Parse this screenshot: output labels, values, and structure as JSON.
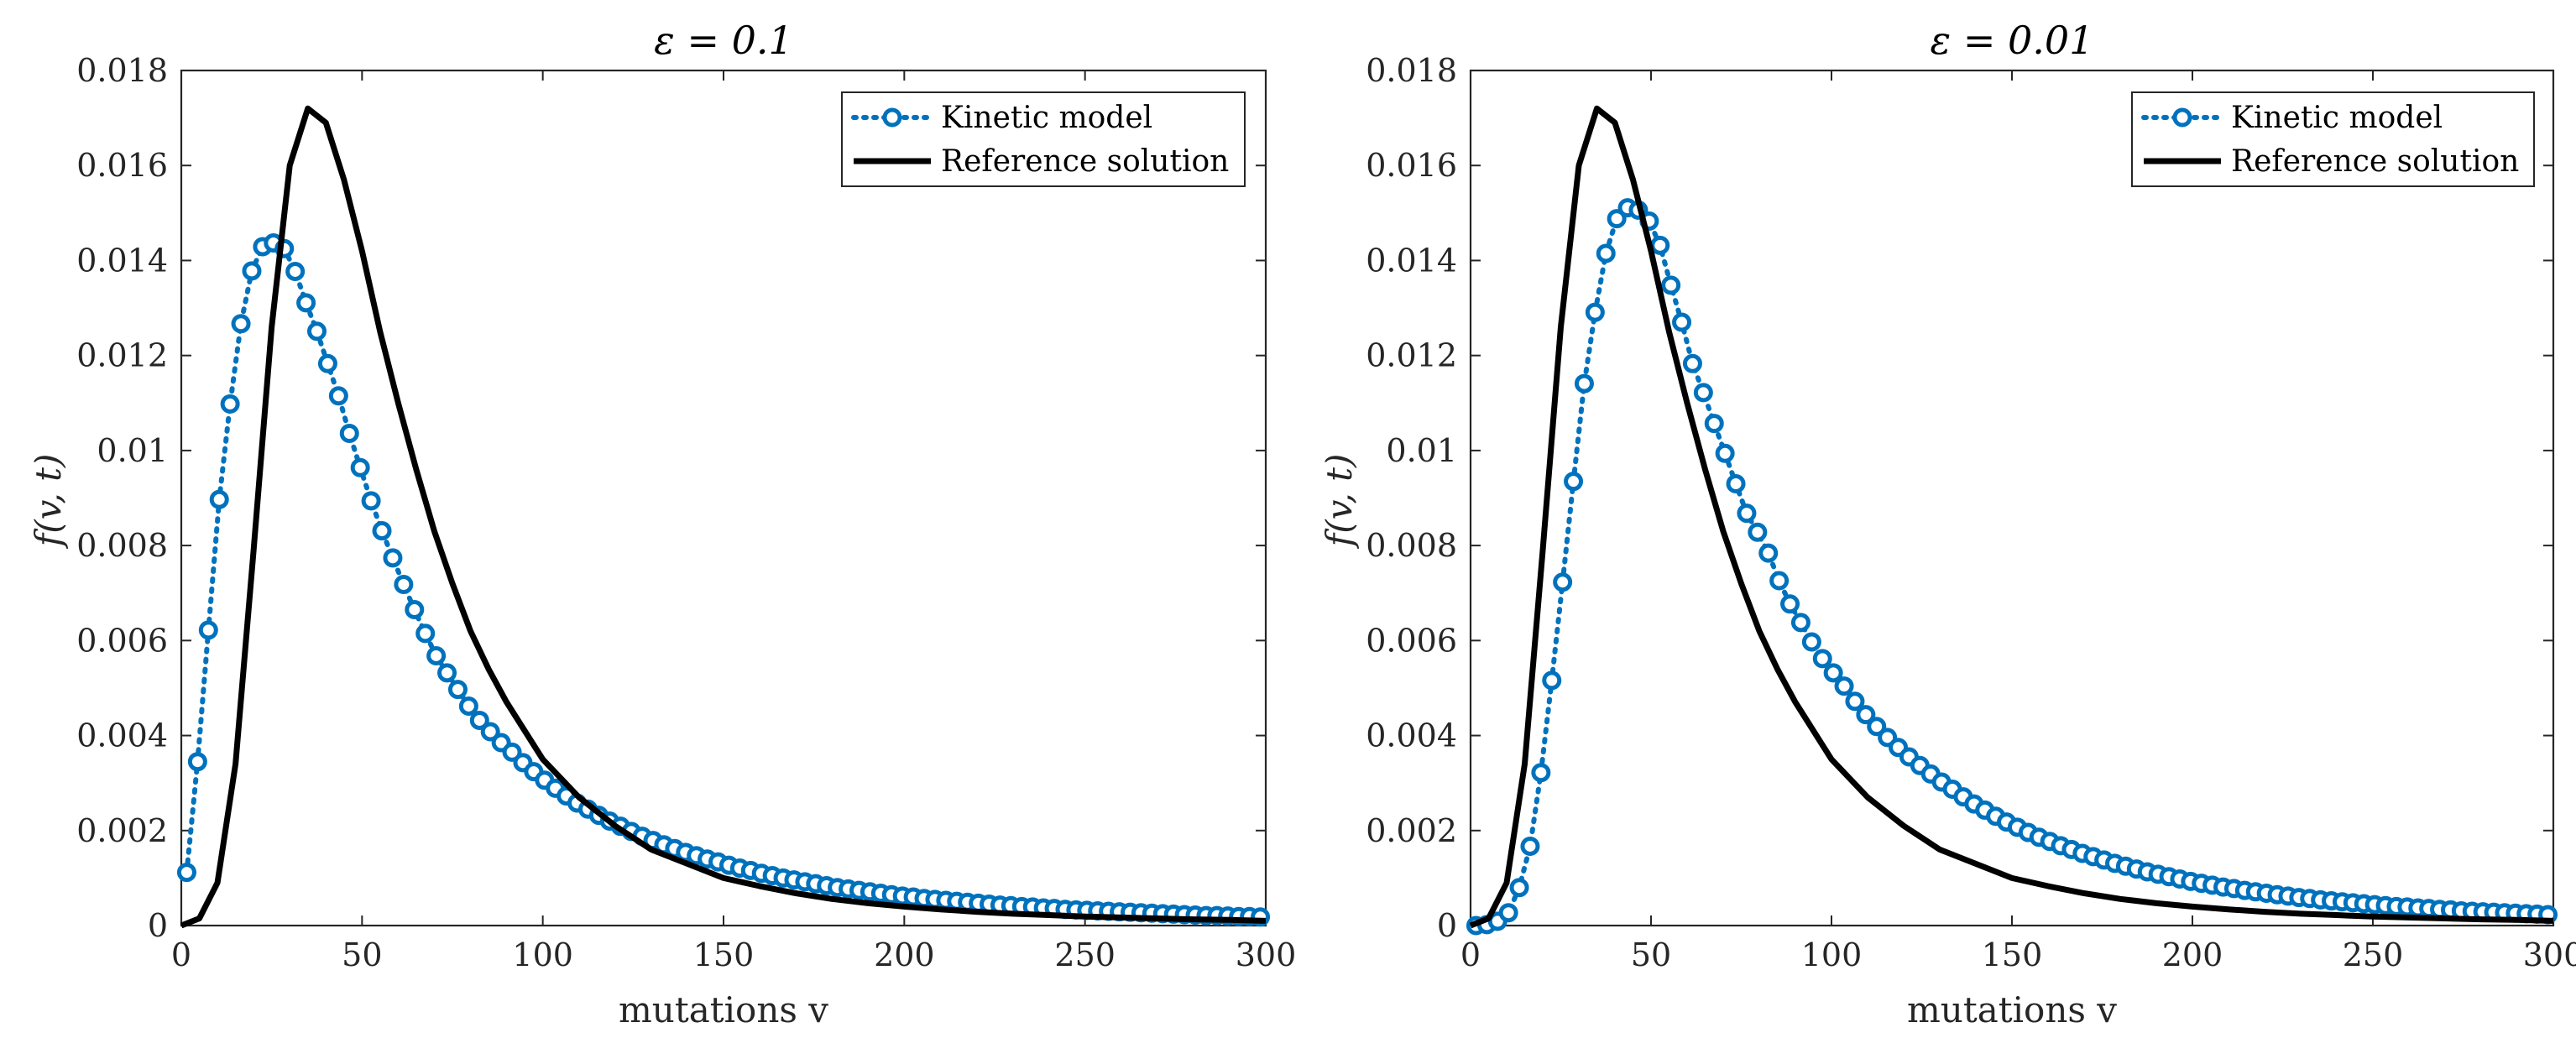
{
  "colors": {
    "kinetic": "#0072BD",
    "reference": "#000000",
    "axis": "#262626",
    "background": "#ffffff"
  },
  "chart_data": [
    {
      "type": "line",
      "title": "ε = 0.1",
      "xlabel": "mutations v",
      "ylabel": "f(v, t)",
      "xlim": [
        0,
        300
      ],
      "ylim": [
        0,
        0.018
      ],
      "xticks": [
        "0",
        "50",
        "100",
        "150",
        "200",
        "250",
        "300"
      ],
      "yticks": [
        "0",
        "0.002",
        "0.004",
        "0.006",
        "0.008",
        "0.01",
        "0.012",
        "0.014",
        "0.016",
        "0.018"
      ],
      "legend": {
        "position": "top-right",
        "entries": [
          "Kinetic model",
          "Reference solution"
        ]
      },
      "series": [
        {
          "name": "Kinetic model",
          "style": "dotted line with circle markers",
          "x": [
            1.5,
            4.5,
            7.5,
            10.5,
            13.5,
            16.5,
            19.5,
            22.5,
            25.5,
            28.5,
            31.5,
            34.5,
            37.5,
            40.5,
            43.5,
            46.5,
            49.5,
            52.5,
            55.5,
            58.5,
            61.5,
            64.5,
            67.5,
            70.5,
            73.5,
            76.5,
            79.5,
            82.5,
            85.5,
            88.5,
            91.5,
            94.5,
            97.5,
            100.5,
            103.5,
            106.5,
            109.5,
            112.5,
            115.5,
            118.5,
            121.5,
            124.5,
            127.5,
            130.5,
            133.5,
            136.5,
            139.5,
            142.5,
            145.5,
            148.5,
            151.5,
            154.5,
            157.5,
            160.5,
            163.5,
            166.5,
            169.5,
            172.5,
            175.5,
            178.5,
            181.5,
            184.5,
            187.5,
            190.5,
            193.5,
            196.5,
            199.5,
            202.5,
            205.5,
            208.5,
            211.5,
            214.5,
            217.5,
            220.5,
            223.5,
            226.5,
            229.5,
            232.5,
            235.5,
            238.5,
            241.5,
            244.5,
            247.5,
            250.5,
            253.5,
            256.5,
            259.5,
            262.5,
            265.5,
            268.5,
            271.5,
            274.5,
            277.5,
            280.5,
            283.5,
            286.5,
            289.5,
            292.5,
            295.5,
            298.5
          ],
          "values": [
            0.00112,
            0.00345,
            0.00622,
            0.00897,
            0.01098,
            0.01267,
            0.01378,
            0.01429,
            0.01437,
            0.01425,
            0.01377,
            0.01311,
            0.01251,
            0.01183,
            0.01115,
            0.01036,
            0.00964,
            0.00894,
            0.00831,
            0.00774,
            0.00718,
            0.00665,
            0.00615,
            0.00568,
            0.00532,
            0.00497,
            0.00462,
            0.00432,
            0.00408,
            0.00385,
            0.00365,
            0.00343,
            0.00324,
            0.00306,
            0.00289,
            0.00273,
            0.00258,
            0.00245,
            0.00232,
            0.0022,
            0.00209,
            0.00198,
            0.00188,
            0.00179,
            0.0017,
            0.00162,
            0.00154,
            0.00147,
            0.0014,
            0.00134,
            0.00127,
            0.00121,
            0.00116,
            0.0011,
            0.00105,
            0.001,
            0.00096,
            0.00092,
            0.00088,
            0.00084,
            0.0008,
            0.00077,
            0.00074,
            0.00071,
            0.00068,
            0.00065,
            0.00062,
            0.0006,
            0.00057,
            0.00055,
            0.00053,
            0.00051,
            0.00049,
            0.00047,
            0.00045,
            0.00043,
            0.00042,
            0.0004,
            0.00039,
            0.00037,
            0.00036,
            0.00034,
            0.00033,
            0.00032,
            0.00031,
            0.0003,
            0.00029,
            0.00028,
            0.00027,
            0.00026,
            0.00025,
            0.00024,
            0.00023,
            0.00022,
            0.00021,
            0.00021,
            0.0002,
            0.00019,
            0.00019,
            0.00018
          ]
        },
        {
          "name": "Reference solution",
          "style": "solid black line",
          "x": [
            0,
            5,
            10,
            15,
            20,
            25,
            30,
            35,
            40,
            45,
            50,
            55,
            60,
            65,
            70,
            75,
            80,
            85,
            90,
            95,
            100,
            110,
            120,
            130,
            140,
            150,
            160,
            170,
            180,
            190,
            200,
            210,
            220,
            230,
            240,
            250,
            260,
            270,
            280,
            290,
            300
          ],
          "values": [
            0.0,
            0.00015,
            0.0009,
            0.0034,
            0.0079,
            0.0126,
            0.016,
            0.0172,
            0.0169,
            0.0157,
            0.0142,
            0.0125,
            0.011,
            0.0096,
            0.0083,
            0.0072,
            0.0062,
            0.0054,
            0.0047,
            0.0041,
            0.0035,
            0.0027,
            0.0021,
            0.0016,
            0.0013,
            0.001,
            0.00083,
            0.00068,
            0.00056,
            0.00047,
            0.0004,
            0.00034,
            0.00029,
            0.00025,
            0.00022,
            0.00019,
            0.00017,
            0.00015,
            0.00013,
            0.00012,
            0.0001
          ]
        }
      ]
    },
    {
      "type": "line",
      "title": "ε = 0.01",
      "xlabel": "mutations v",
      "ylabel": "f(v, t)",
      "xlim": [
        0,
        300
      ],
      "ylim": [
        0,
        0.018
      ],
      "xticks": [
        "0",
        "50",
        "100",
        "150",
        "200",
        "250",
        "300"
      ],
      "yticks": [
        "0",
        "0.002",
        "0.004",
        "0.006",
        "0.008",
        "0.01",
        "0.012",
        "0.014",
        "0.016",
        "0.018"
      ],
      "legend": {
        "position": "top-right",
        "entries": [
          "Kinetic model",
          "Reference solution"
        ]
      },
      "series": [
        {
          "name": "Kinetic model",
          "style": "dotted line with circle markers",
          "x": [
            1.5,
            4.5,
            7.5,
            10.5,
            13.5,
            16.5,
            19.5,
            22.5,
            25.5,
            28.5,
            31.5,
            34.5,
            37.5,
            40.5,
            43.5,
            46.5,
            49.5,
            52.5,
            55.5,
            58.5,
            61.5,
            64.5,
            67.5,
            70.5,
            73.5,
            76.5,
            79.5,
            82.5,
            85.5,
            88.5,
            91.5,
            94.5,
            97.5,
            100.5,
            103.5,
            106.5,
            109.5,
            112.5,
            115.5,
            118.5,
            121.5,
            124.5,
            127.5,
            130.5,
            133.5,
            136.5,
            139.5,
            142.5,
            145.5,
            148.5,
            151.5,
            154.5,
            157.5,
            160.5,
            163.5,
            166.5,
            169.5,
            172.5,
            175.5,
            178.5,
            181.5,
            184.5,
            187.5,
            190.5,
            193.5,
            196.5,
            199.5,
            202.5,
            205.5,
            208.5,
            211.5,
            214.5,
            217.5,
            220.5,
            223.5,
            226.5,
            229.5,
            232.5,
            235.5,
            238.5,
            241.5,
            244.5,
            247.5,
            250.5,
            253.5,
            256.5,
            259.5,
            262.5,
            265.5,
            268.5,
            271.5,
            274.5,
            277.5,
            280.5,
            283.5,
            286.5,
            289.5,
            292.5,
            295.5,
            298.5
          ],
          "values": [
            0.0,
            2e-05,
            9e-05,
            0.00027,
            0.0008,
            0.00167,
            0.00322,
            0.00516,
            0.00723,
            0.00935,
            0.01141,
            0.01291,
            0.01415,
            0.01488,
            0.01511,
            0.01506,
            0.01483,
            0.01432,
            0.01348,
            0.0127,
            0.01183,
            0.01122,
            0.01057,
            0.00994,
            0.0093,
            0.00868,
            0.00828,
            0.00784,
            0.00726,
            0.00677,
            0.00638,
            0.00597,
            0.00562,
            0.00532,
            0.00504,
            0.00472,
            0.00444,
            0.00419,
            0.00396,
            0.00375,
            0.00355,
            0.00337,
            0.00319,
            0.00302,
            0.00287,
            0.00271,
            0.00256,
            0.00243,
            0.0023,
            0.00218,
            0.00207,
            0.00196,
            0.00186,
            0.00177,
            0.00168,
            0.0016,
            0.00152,
            0.00145,
            0.00138,
            0.00131,
            0.00125,
            0.00119,
            0.00113,
            0.00108,
            0.00103,
            0.00098,
            0.00093,
            0.00089,
            0.00085,
            0.00081,
            0.00078,
            0.00074,
            0.00071,
            0.00068,
            0.00065,
            0.00062,
            0.00059,
            0.00057,
            0.00054,
            0.00052,
            0.0005,
            0.00048,
            0.00046,
            0.00044,
            0.00042,
            0.0004,
            0.00039,
            0.00037,
            0.00036,
            0.00034,
            0.00033,
            0.00031,
            0.0003,
            0.00029,
            0.00028,
            0.00027,
            0.00026,
            0.00025,
            0.00024,
            0.00023
          ]
        },
        {
          "name": "Reference solution",
          "style": "solid black line",
          "x": [
            0,
            5,
            10,
            15,
            20,
            25,
            30,
            35,
            40,
            45,
            50,
            55,
            60,
            65,
            70,
            75,
            80,
            85,
            90,
            95,
            100,
            110,
            120,
            130,
            140,
            150,
            160,
            170,
            180,
            190,
            200,
            210,
            220,
            230,
            240,
            250,
            260,
            270,
            280,
            290,
            300
          ],
          "values": [
            0.0,
            0.00015,
            0.0009,
            0.0034,
            0.0079,
            0.0126,
            0.016,
            0.0172,
            0.0169,
            0.0157,
            0.0142,
            0.0125,
            0.011,
            0.0096,
            0.0083,
            0.0072,
            0.0062,
            0.0054,
            0.0047,
            0.0041,
            0.0035,
            0.0027,
            0.0021,
            0.0016,
            0.0013,
            0.001,
            0.00083,
            0.00068,
            0.00056,
            0.00047,
            0.0004,
            0.00034,
            0.00029,
            0.00025,
            0.00022,
            0.00019,
            0.00017,
            0.00015,
            0.00013,
            0.00012,
            0.0001
          ]
        }
      ]
    }
  ]
}
